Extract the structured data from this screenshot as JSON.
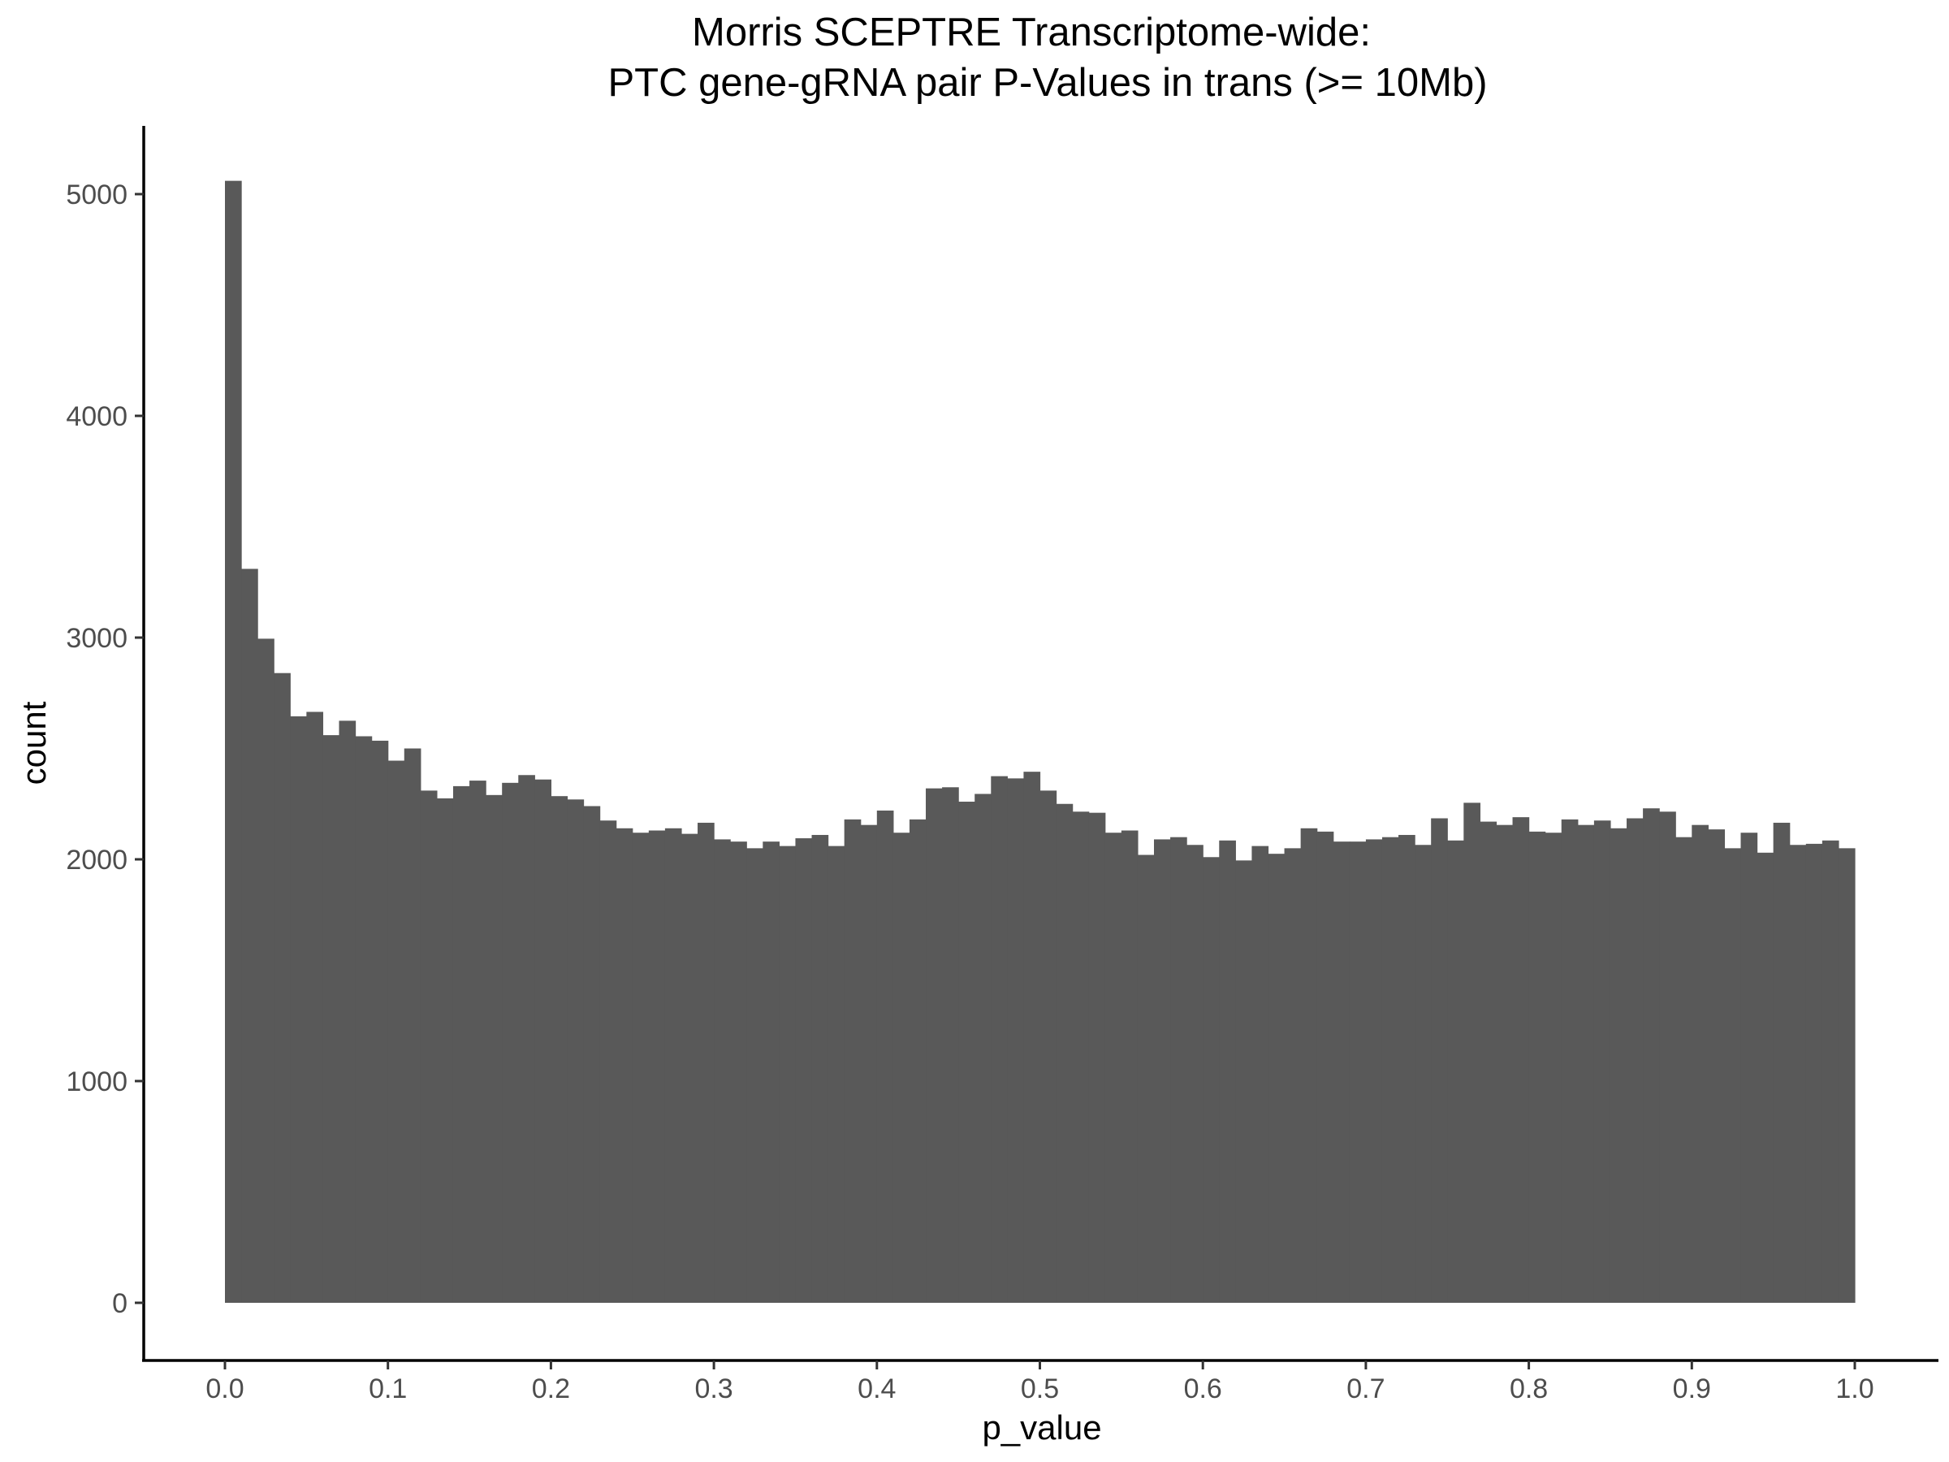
{
  "chart_data": {
    "type": "bar",
    "title": "Morris SCEPTRE Transcriptome-wide:",
    "subtitle": "PTC gene-gRNA pair P-Values in trans (>= 10Mb)",
    "xlabel": "p_value",
    "ylabel": "count",
    "xlim": [
      -0.05,
      1.05
    ],
    "ylim": [
      -300,
      5300
    ],
    "grid": false,
    "bar_color": "#595959",
    "x_ticks": [
      0.0,
      0.1,
      0.2,
      0.3,
      0.4,
      0.5,
      0.6,
      0.7,
      0.8,
      0.9,
      1.0
    ],
    "x_tick_labels": [
      "0.0",
      "0.1",
      "0.2",
      "0.3",
      "0.4",
      "0.5",
      "0.6",
      "0.7",
      "0.8",
      "0.9",
      "1.0"
    ],
    "y_ticks": [
      0,
      1000,
      2000,
      3000,
      4000,
      5000
    ],
    "y_tick_labels": [
      "0",
      "1000",
      "2000",
      "3000",
      "4000",
      "5000"
    ],
    "bin_range": [
      0.0,
      1.0
    ],
    "values": [
      5060,
      3310,
      2995,
      2840,
      2645,
      2665,
      2560,
      2625,
      2555,
      2535,
      2445,
      2500,
      2310,
      2275,
      2330,
      2355,
      2290,
      2345,
      2380,
      2360,
      2285,
      2270,
      2240,
      2175,
      2140,
      2120,
      2130,
      2140,
      2115,
      2165,
      2090,
      2080,
      2050,
      2080,
      2060,
      2095,
      2110,
      2060,
      2180,
      2155,
      2220,
      2120,
      2180,
      2320,
      2325,
      2260,
      2295,
      2375,
      2365,
      2395,
      2310,
      2250,
      2215,
      2210,
      2120,
      2130,
      2020,
      2090,
      2100,
      2065,
      2010,
      2085,
      1995,
      2060,
      2025,
      2050,
      2140,
      2125,
      2080,
      2080,
      2090,
      2100,
      2110,
      2065,
      2185,
      2085,
      2255,
      2170,
      2155,
      2190,
      2125,
      2120,
      2180,
      2155,
      2175,
      2140,
      2185,
      2230,
      2215,
      2100,
      2155,
      2135,
      2050,
      2120,
      2030,
      2165,
      2065,
      2070,
      2085,
      2050
    ]
  }
}
